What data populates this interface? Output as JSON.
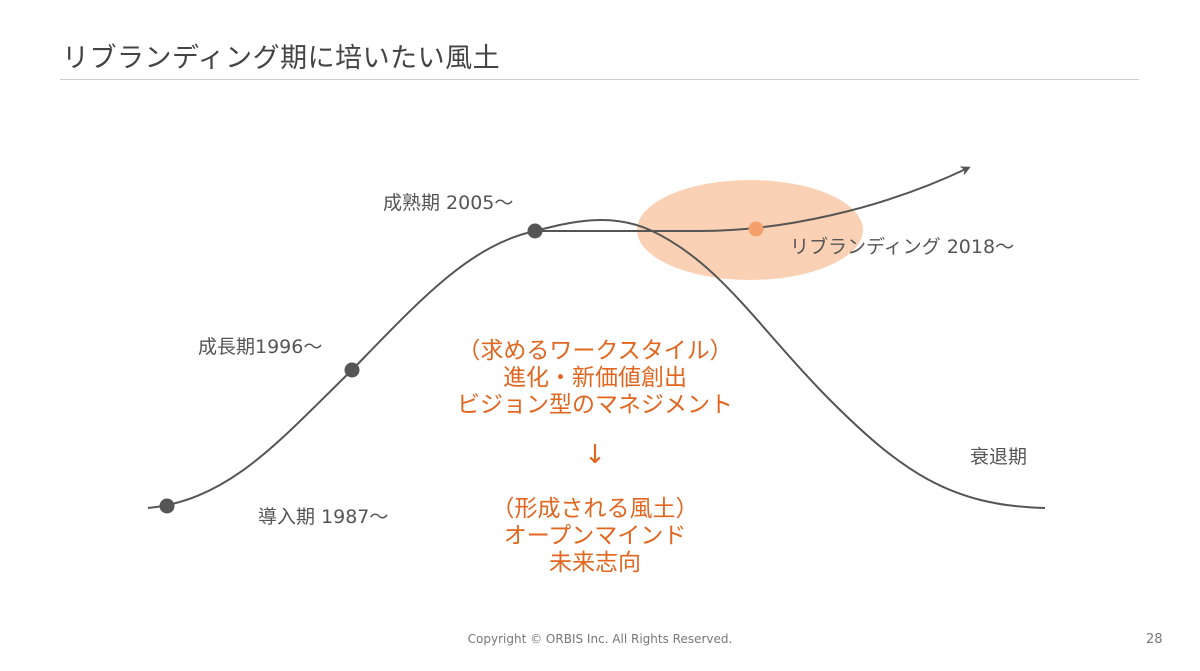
{
  "title": "リブランディング期に培いたい風土",
  "stages": {
    "intro": "導入期 1987～",
    "growth": "成長期1996～",
    "maturity": "成熟期 2005～",
    "rebranding": "リブランディング 2018～",
    "decline": "衰退期"
  },
  "culture": {
    "style_heading": "（求めるワークスタイル）",
    "style_line1": "進化・新価値創出",
    "style_line2": "ビジョン型のマネジメント",
    "arrow": "↓",
    "climate_heading": "（形成される風土）",
    "climate_line1": "オープンマインド",
    "climate_line2": "未来志向"
  },
  "footer": {
    "copyright": "Copyright © ORBIS Inc. All Rights Reserved.",
    "page_number": "28"
  },
  "colors": {
    "curve": "#555555",
    "accent": "#e2661f",
    "highlight_fill": "#f9c9a8",
    "highlight_point": "#f5a06a"
  }
}
